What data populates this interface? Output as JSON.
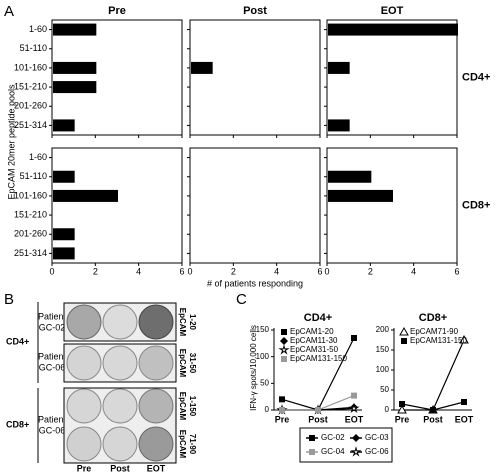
{
  "panel_a": {
    "label": "A",
    "columns": [
      "Pre",
      "Post",
      "EOT"
    ],
    "rows": [
      "CD4+",
      "CD8+"
    ],
    "ylabel": "EpCAM 20mer peptide pools",
    "xlabel": "# of patients responding",
    "categories": [
      "1-60",
      "51-110",
      "101-160",
      "151-210",
      "201-260",
      "251-314"
    ],
    "xlim": [
      0,
      6
    ],
    "xticks": [
      0,
      2,
      4,
      6
    ],
    "color": "#000000"
  },
  "chart_data": [
    {
      "type": "hbar",
      "values": [
        2,
        0,
        2,
        2,
        0,
        1
      ]
    },
    {
      "type": "hbar",
      "values": [
        0,
        0,
        1,
        0,
        0,
        0
      ]
    },
    {
      "type": "hbar",
      "values": [
        6,
        0,
        1,
        0,
        0,
        1
      ]
    },
    {
      "type": "hbar",
      "values": [
        0,
        1,
        3,
        0,
        1,
        1
      ]
    },
    {
      "type": "hbar",
      "values": [
        0,
        0,
        0,
        0,
        0,
        0
      ]
    },
    {
      "type": "hbar",
      "values": [
        0,
        2,
        3,
        0,
        0,
        0
      ]
    },
    {
      "type": "line",
      "title": "CD4+",
      "categories": [
        "Pre",
        "Post",
        "EOT"
      ],
      "ylim": [
        0,
        150
      ],
      "yticks": [
        0,
        50,
        100,
        150
      ],
      "series": [
        {
          "name": "EpCAM1-20",
          "color": "#000000",
          "marker": "square",
          "values": [
            20,
            0,
            135
          ]
        },
        {
          "name": "EpCAM11-30",
          "color": "#000000",
          "marker": "diamond",
          "values": [
            0,
            0,
            5
          ]
        },
        {
          "name": "EpCAM31-50",
          "color": "#000000",
          "marker": "star",
          "values": [
            0,
            0,
            3
          ]
        },
        {
          "name": "EpCAM131-150",
          "color": "#999999",
          "marker": "square",
          "values": [
            0,
            0,
            27
          ]
        }
      ]
    },
    {
      "type": "line",
      "title": "CD8+",
      "categories": [
        "Pre",
        "Post",
        "EOT"
      ],
      "ylim": [
        0,
        200
      ],
      "yticks": [
        0,
        50,
        100,
        150,
        200
      ],
      "series": [
        {
          "name": "EpCAM71-90",
          "color": "#000000",
          "marker": "triangle",
          "values": [
            0,
            0,
            175
          ]
        },
        {
          "name": "EpCAM131-150",
          "color": "#000000",
          "marker": "square",
          "values": [
            15,
            0,
            20
          ]
        }
      ]
    }
  ],
  "panel_b": {
    "label": "B",
    "groups": [
      "CD4+",
      "CD8+"
    ],
    "patients": [
      [
        "Patient",
        "GC-02"
      ],
      [
        "Patient",
        "GC-06"
      ],
      [
        "Patient",
        "GC-06"
      ]
    ],
    "peptides": [
      [
        "EpCAM",
        "1-20"
      ],
      [
        "EpCAM",
        "31-50"
      ],
      [
        "EpCAM",
        "1-150"
      ],
      [
        "EpCAM",
        "71-90"
      ]
    ],
    "columns": [
      "Pre",
      "Post",
      "EOT"
    ]
  },
  "panel_c": {
    "label": "C",
    "ylabel": "IFN-γ spots/10.000 cells",
    "patient_legend": [
      {
        "name": "GC-02",
        "color": "#000000",
        "marker": "square"
      },
      {
        "name": "GC-03",
        "color": "#000000",
        "marker": "diamond"
      },
      {
        "name": "GC-04",
        "color": "#999999",
        "marker": "square"
      },
      {
        "name": "GC-06",
        "color": "#000000",
        "marker": "star"
      }
    ]
  }
}
